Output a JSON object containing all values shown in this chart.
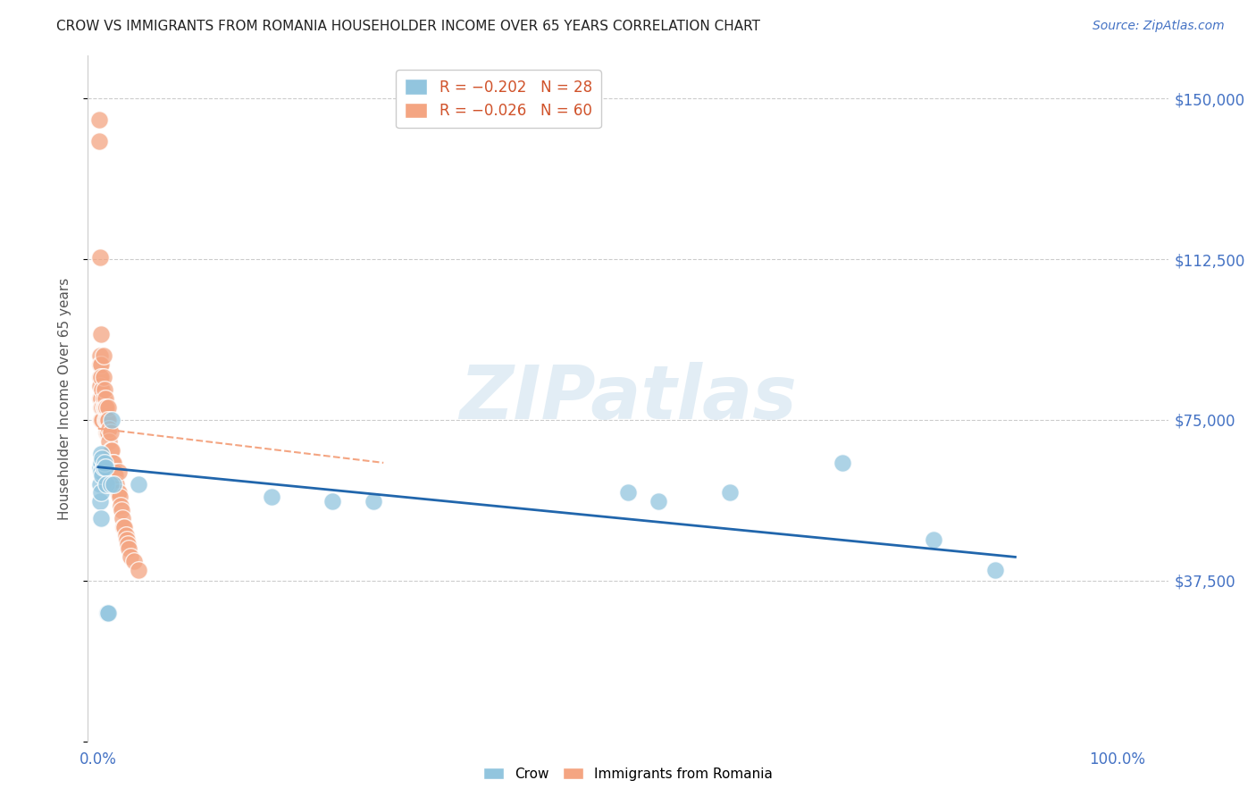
{
  "title": "CROW VS IMMIGRANTS FROM ROMANIA HOUSEHOLDER INCOME OVER 65 YEARS CORRELATION CHART",
  "source": "Source: ZipAtlas.com",
  "ylabel": "Householder Income Over 65 years",
  "crow_color": "#92c5de",
  "romania_color": "#f4a582",
  "crow_edge_color": "#4393c3",
  "romania_edge_color": "#d6604d",
  "crow_line_color": "#2166ac",
  "romania_line_color": "#f4a582",
  "ylim_min": 0,
  "ylim_max": 160000,
  "xlim_min": -0.01,
  "xlim_max": 1.05,
  "yticks": [
    0,
    37500,
    75000,
    112500,
    150000
  ],
  "ytick_labels": [
    "",
    "$37,500",
    "$75,000",
    "$112,500",
    "$150,000"
  ],
  "crow_x": [
    0.002,
    0.002,
    0.002,
    0.003,
    0.003,
    0.003,
    0.003,
    0.003,
    0.004,
    0.004,
    0.005,
    0.006,
    0.007,
    0.008,
    0.009,
    0.01,
    0.012,
    0.013,
    0.015,
    0.04,
    0.17,
    0.23,
    0.27,
    0.52,
    0.55,
    0.62,
    0.73,
    0.82,
    0.88
  ],
  "crow_y": [
    64000,
    60000,
    56000,
    67000,
    65000,
    63000,
    58000,
    52000,
    66000,
    62000,
    64000,
    65000,
    64000,
    60000,
    30000,
    30000,
    60000,
    75000,
    60000,
    60000,
    57000,
    56000,
    56000,
    58000,
    56000,
    58000,
    65000,
    47000,
    40000
  ],
  "romania_x": [
    0.001,
    0.001,
    0.002,
    0.002,
    0.002,
    0.002,
    0.002,
    0.002,
    0.003,
    0.003,
    0.003,
    0.003,
    0.003,
    0.003,
    0.004,
    0.004,
    0.004,
    0.005,
    0.005,
    0.005,
    0.005,
    0.006,
    0.006,
    0.007,
    0.007,
    0.007,
    0.008,
    0.008,
    0.008,
    0.009,
    0.009,
    0.01,
    0.01,
    0.01,
    0.011,
    0.011,
    0.012,
    0.012,
    0.013,
    0.014,
    0.015,
    0.016,
    0.017,
    0.018,
    0.019,
    0.02,
    0.02,
    0.021,
    0.022,
    0.023,
    0.024,
    0.025,
    0.026,
    0.027,
    0.028,
    0.029,
    0.03,
    0.032,
    0.035,
    0.04
  ],
  "romania_y": [
    145000,
    140000,
    113000,
    90000,
    88000,
    85000,
    83000,
    80000,
    95000,
    88000,
    85000,
    80000,
    78000,
    75000,
    82000,
    78000,
    75000,
    90000,
    85000,
    80000,
    78000,
    82000,
    78000,
    80000,
    78000,
    75000,
    78000,
    75000,
    72000,
    75000,
    72000,
    78000,
    75000,
    72000,
    73000,
    70000,
    72000,
    68000,
    68000,
    65000,
    65000,
    63000,
    62000,
    60000,
    58000,
    63000,
    58000,
    57000,
    55000,
    54000,
    52000,
    50000,
    50000,
    48000,
    47000,
    46000,
    45000,
    43000,
    42000,
    40000
  ],
  "crow_trend_x": [
    0.0,
    0.9
  ],
  "crow_trend_y": [
    64000,
    43000
  ],
  "romania_trend_x": [
    0.0,
    0.28
  ],
  "romania_trend_y": [
    73000,
    65000
  ]
}
